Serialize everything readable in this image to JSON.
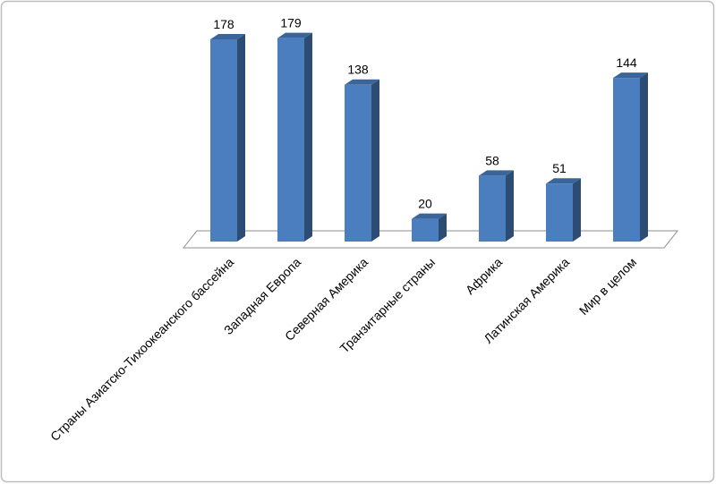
{
  "chart_data": {
    "type": "bar3d",
    "categories": [
      "Страны Азиатско-Тихоокеанского бассейна",
      "Западная Европа",
      "Северная Америка",
      "Транзитарные страны",
      "Африка",
      "Латинская Америка",
      "Мир в целом"
    ],
    "values": [
      178,
      179,
      138,
      20,
      58,
      51,
      144
    ],
    "color": "#4a7ebf"
  }
}
